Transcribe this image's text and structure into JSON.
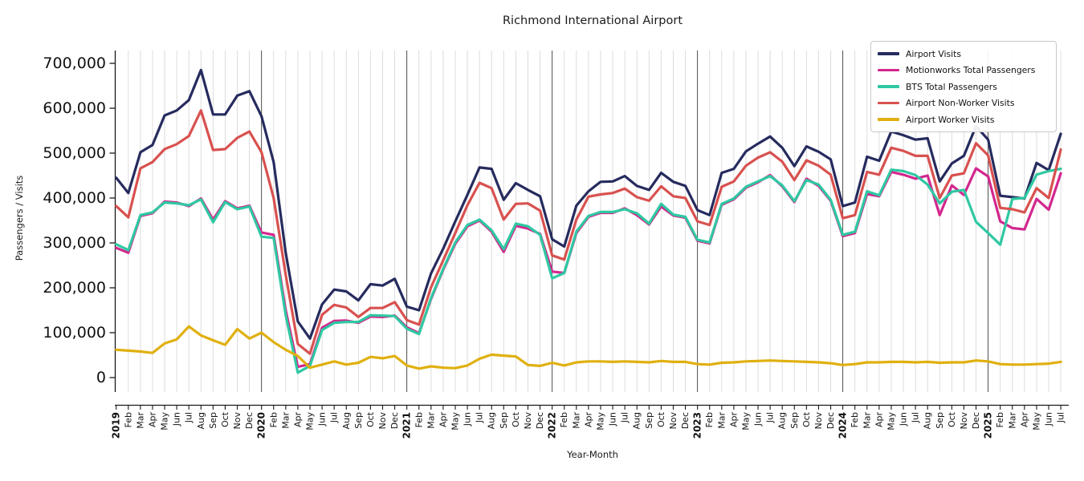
{
  "chart_data": {
    "type": "line",
    "title": "Richmond International Airport",
    "xlabel": "Year-Month",
    "ylabel": "Passengers / Visits",
    "ylim": [
      0,
      700000
    ],
    "yticks": [
      0,
      100000,
      200000,
      300000,
      400000,
      500000,
      600000,
      700000
    ],
    "grid": "vertical-monthly",
    "legend_position": "upper-right",
    "x_labels": [
      "2019",
      "Feb",
      "Mar",
      "Apr",
      "May",
      "Jun",
      "Jul",
      "Aug",
      "Sep",
      "Oct",
      "Nov",
      "Dec",
      "2020",
      "Feb",
      "Mar",
      "Apr",
      "May",
      "Jun",
      "Jul",
      "Aug",
      "Sep",
      "Oct",
      "Nov",
      "Dec",
      "2021",
      "Feb",
      "Mar",
      "Apr",
      "May",
      "Jun",
      "Jul",
      "Aug",
      "Sep",
      "Oct",
      "Nov",
      "Dec",
      "2022",
      "Feb",
      "Mar",
      "Apr",
      "May",
      "Jun",
      "Jul",
      "Aug",
      "Sep",
      "Oct",
      "Nov",
      "Dec",
      "2023",
      "Feb",
      "Mar",
      "Apr",
      "May",
      "Jun",
      "Jul",
      "Aug",
      "Sep",
      "Oct",
      "Nov",
      "Dec",
      "2024",
      "Feb",
      "Mar",
      "Apr",
      "May",
      "Jun",
      "Jul",
      "Aug",
      "Sep",
      "Oct",
      "Nov",
      "Dec",
      "2025",
      "Feb",
      "Mar",
      "Apr",
      "May",
      "Jun",
      "Jul"
    ],
    "year_boundary_indices": [
      12,
      24,
      36,
      48,
      60,
      72
    ],
    "series": [
      {
        "name": "Airport Visits",
        "color": "#262b5e",
        "values": [
          445000,
          411000,
          502000,
          518000,
          584000,
          595000,
          618000,
          685000,
          586000,
          586000,
          628000,
          638000,
          582000,
          480000,
          278000,
          125000,
          87000,
          163000,
          196000,
          192000,
          172000,
          208000,
          205000,
          220000,
          158000,
          150000,
          232000,
          287000,
          348000,
          407000,
          468000,
          465000,
          396000,
          433000,
          418000,
          404000,
          308000,
          292000,
          383000,
          415000,
          436000,
          437000,
          449000,
          427000,
          418000,
          456000,
          436000,
          427000,
          373000,
          362000,
          456000,
          465000,
          504000,
          521000,
          537000,
          512000,
          471000,
          515000,
          503000,
          486000,
          382000,
          390000,
          492000,
          483000,
          548000,
          540000,
          530000,
          533000,
          437000,
          477000,
          494000,
          560000,
          530000,
          405000,
          402000,
          399000,
          478000,
          462000,
          543000
        ]
      },
      {
        "name": "Motionworks Total Passengers",
        "color": "#d3278e",
        "values": [
          289000,
          278000,
          360000,
          366000,
          392000,
          390000,
          382000,
          399000,
          352000,
          393000,
          377000,
          383000,
          323000,
          318000,
          150000,
          24000,
          30000,
          111000,
          126000,
          127000,
          122000,
          136000,
          135000,
          138000,
          112000,
          99000,
          175000,
          240000,
          298000,
          337000,
          350000,
          325000,
          280000,
          338000,
          332000,
          320000,
          236000,
          233000,
          322000,
          358000,
          367000,
          367000,
          377000,
          362000,
          341000,
          381000,
          361000,
          356000,
          305000,
          299000,
          385000,
          397000,
          423000,
          435000,
          451000,
          426000,
          391000,
          443000,
          427000,
          394000,
          315000,
          322000,
          409000,
          404000,
          458000,
          452000,
          443000,
          450000,
          362000,
          428000,
          407000,
          466000,
          448000,
          348000,
          333000,
          330000,
          398000,
          374000,
          455000
        ]
      },
      {
        "name": "BTS Total Passengers",
        "color": "#2fc8a2",
        "values": [
          297000,
          284000,
          362000,
          368000,
          390000,
          388000,
          384000,
          397000,
          346000,
          391000,
          375000,
          381000,
          314000,
          311000,
          139000,
          11000,
          26000,
          106000,
          122000,
          124000,
          124000,
          139000,
          138000,
          137000,
          109000,
          97000,
          177000,
          242000,
          301000,
          340000,
          352000,
          328000,
          286000,
          343000,
          337000,
          318000,
          221000,
          233000,
          325000,
          360000,
          369000,
          369000,
          375000,
          366000,
          343000,
          387000,
          363000,
          358000,
          307000,
          301000,
          387000,
          399000,
          425000,
          437000,
          449000,
          428000,
          393000,
          440000,
          430000,
          396000,
          318000,
          325000,
          415000,
          406000,
          463000,
          460000,
          451000,
          430000,
          388000,
          414000,
          418000,
          347000,
          322000,
          296000,
          398000,
          400000,
          452000,
          460000,
          465000
        ]
      },
      {
        "name": "Airport Non-Worker Visits",
        "color": "#d8514f",
        "values": [
          382000,
          357000,
          466000,
          480000,
          509000,
          520000,
          538000,
          595000,
          507000,
          509000,
          534000,
          548000,
          502000,
          400000,
          229000,
          75000,
          53000,
          140000,
          162000,
          156000,
          135000,
          155000,
          155000,
          168000,
          128000,
          118000,
          201000,
          261000,
          322000,
          384000,
          434000,
          422000,
          352000,
          387000,
          388000,
          372000,
          272000,
          263000,
          352000,
          403000,
          408000,
          411000,
          421000,
          402000,
          394000,
          426000,
          404000,
          400000,
          348000,
          340000,
          425000,
          437000,
          472000,
          490000,
          502000,
          481000,
          440000,
          484000,
          472000,
          452000,
          355000,
          362000,
          458000,
          452000,
          512000,
          505000,
          494000,
          494000,
          400000,
          450000,
          455000,
          522000,
          495000,
          378000,
          375000,
          368000,
          422000,
          400000,
          508000
        ]
      },
      {
        "name": "Airport Worker Visits",
        "color": "#e0b010",
        "values": [
          62000,
          60000,
          58000,
          55000,
          76000,
          85000,
          114000,
          94000,
          83000,
          73000,
          108000,
          87000,
          100000,
          79000,
          62000,
          48000,
          22000,
          29000,
          36000,
          29000,
          33000,
          46000,
          43000,
          48000,
          27000,
          20000,
          25000,
          22000,
          21000,
          27000,
          42000,
          51000,
          49000,
          47000,
          28000,
          26000,
          33000,
          27000,
          34000,
          36000,
          36000,
          35000,
          36000,
          35000,
          34000,
          37000,
          35000,
          35000,
          30000,
          29000,
          33000,
          34000,
          36000,
          37000,
          38000,
          37000,
          36000,
          35000,
          34000,
          32000,
          28000,
          30000,
          34000,
          34000,
          35000,
          35000,
          34000,
          35000,
          33000,
          34000,
          34000,
          38000,
          36000,
          30000,
          29000,
          29000,
          30000,
          31000,
          35000
        ]
      }
    ]
  }
}
